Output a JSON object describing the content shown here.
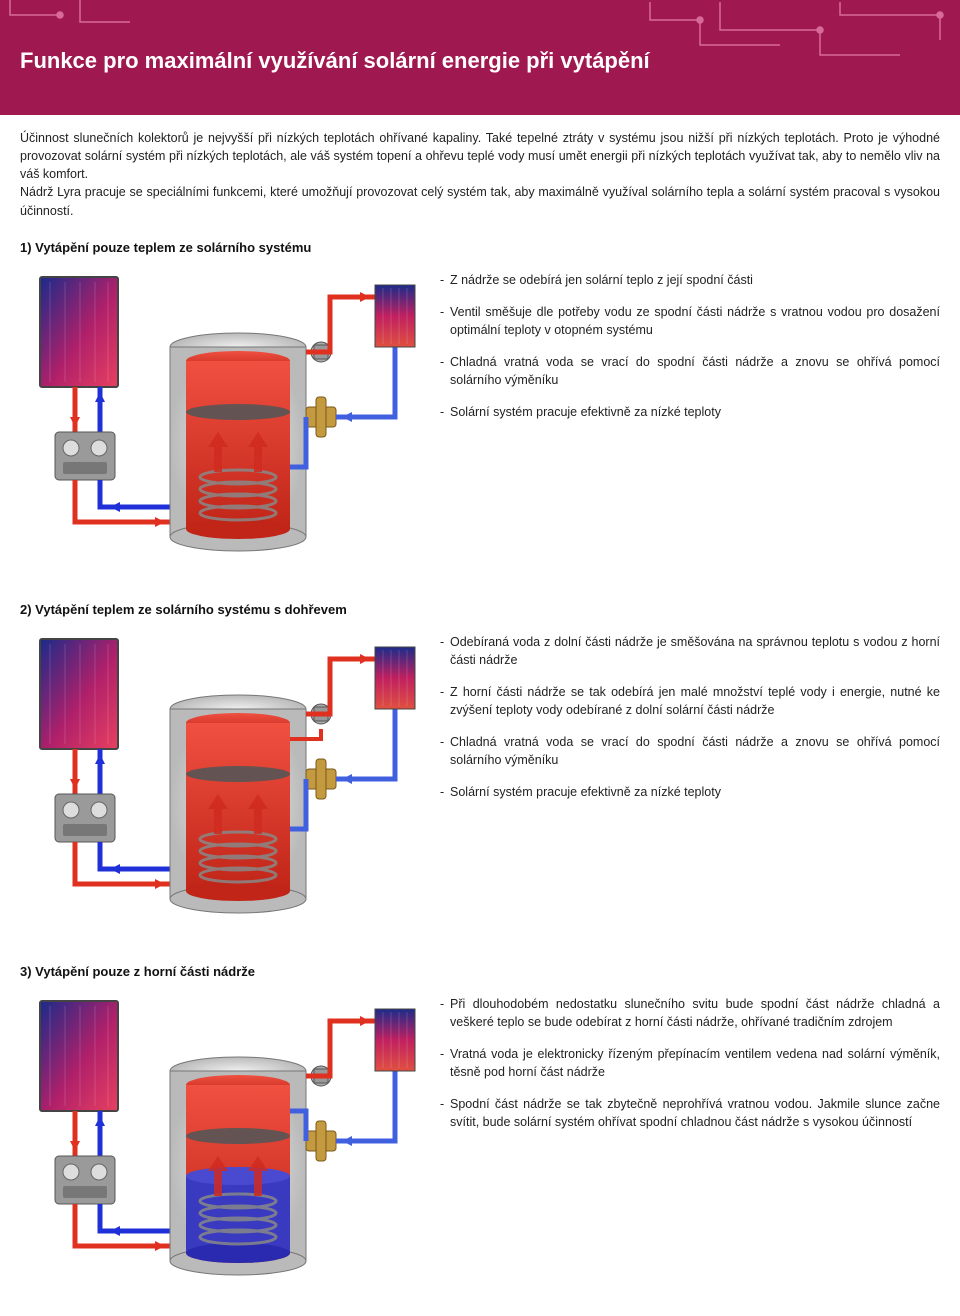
{
  "header": {
    "title": "Funkce pro maximální využívání solární energie při vytápění",
    "bg_color": "#a01850",
    "decor_line_color": "#d86a9a"
  },
  "intro": {
    "text": "Účinnost slunečních kolektorů je nejvyšší při nízkých teplotách ohřívané kapaliny. Také tepelné ztráty v systému jsou nižší při nízkých teplotách. Proto je výhodné provozovat solární systém při nízkých teplotách, ale váš systém topení a ohřevu teplé vody musí umět energii při nízkých teplotách využívat tak, aby to nemělo vliv na váš komfort.\nNádrž Lyra pracuje se speciálními funkcemi, které umožňují provozovat celý systém tak, aby maximálně využíval solárního tepla a solární systém pracoval s vysokou účinností."
  },
  "diagram_style": {
    "panel_gradient": [
      "#1a2b8a",
      "#b0206a",
      "#e84060"
    ],
    "tank_body": "#d8d8d8",
    "tank_inner_hot": "#e03a30",
    "tank_inner_cold": "#3a3ac0",
    "pipe_hot": "#e03020",
    "pipe_cold": "#2030d8",
    "pipe_return_blue": "#4060e0",
    "valve_color": "#b08020",
    "pump_unit": "#888888",
    "radiator_gradient": [
      "#1c2b8a",
      "#c02060",
      "#e05040"
    ],
    "arrow_up": "#d02a20"
  },
  "sections": [
    {
      "title": "1) Vytápění pouze teplem ze solárního systému",
      "mode": 1,
      "bullets": [
        "Z nádrže se odebírá jen solární teplo z její spodní části",
        "Ventil směšuje dle potřeby vodu ze spodní části nádrže s vratnou vodou pro dosažení optimální teploty v otopném systému",
        "Chladná vratná voda se vrací do spodní části nádrže a znovu se ohřívá pomocí solárního výměníku",
        "Solární systém pracuje efektivně za nízké teploty"
      ]
    },
    {
      "title": "2) Vytápění teplem ze solárního systému s dohřevem",
      "mode": 2,
      "bullets": [
        "Odebíraná voda z dolní části nádrže je směšována na správnou teplotu s vodou z horní části nádrže",
        "Z horní části nádrže se tak odebírá jen malé množství teplé vody i energie, nutné ke zvýšení teploty vody odebírané z dolní solární části nádrže",
        "Chladná vratná voda se vrací do spodní části nádrže a znovu se ohřívá pomocí solárního výměníku",
        "Solární systém pracuje efektivně za nízké teploty"
      ]
    },
    {
      "title": "3) Vytápění pouze z horní části nádrže",
      "mode": 3,
      "bullets": [
        "Při dlouhodobém nedostatku slunečního svitu bude spodní část nádrže chladná a veškeré teplo se bude odebírat z horní části nádrže, ohřívané tradičním zdrojem",
        "Vratná voda je elektronicky řízeným přepínacím ventilem vedena nad solární výměník, těsně pod horní část nádrže",
        "Spodní část nádrže se tak zbytečně neprohřívá vratnou vodou. Jakmile slunce začne svítit, bude solární systém ohřívat spodní chladnou část nádrže s vysokou účinností"
      ]
    }
  ]
}
